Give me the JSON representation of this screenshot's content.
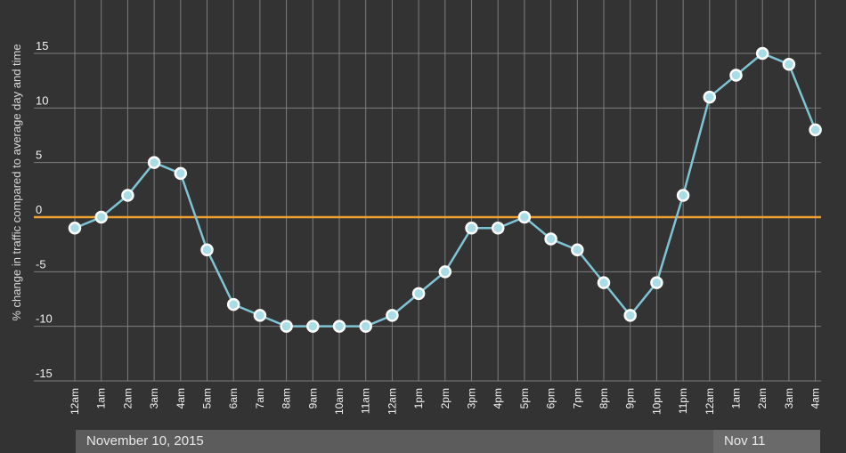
{
  "chart_data": {
    "type": "line",
    "title": "",
    "ylabel": "% change in traffic compared to average day and time",
    "xlabel": "",
    "ylim": [
      -15,
      15
    ],
    "yticks": [
      15,
      10,
      5,
      0,
      -5,
      -10,
      -15
    ],
    "categories": [
      "12am",
      "1am",
      "2am",
      "3am",
      "4am",
      "5am",
      "6am",
      "7am",
      "8am",
      "9am",
      "10am",
      "11am",
      "12am",
      "1pm",
      "2pm",
      "3pm",
      "4pm",
      "5pm",
      "6pm",
      "7pm",
      "8pm",
      "9pm",
      "10pm",
      "11pm",
      "12am",
      "1am",
      "2am",
      "3am",
      "4am"
    ],
    "series": [
      {
        "values": [
          -1,
          0,
          2,
          5,
          4,
          -3,
          -8,
          -9,
          -10,
          -10,
          -10,
          -10,
          -9,
          -7,
          -5,
          -1,
          -1,
          0,
          -2,
          -3,
          -6,
          -9,
          -6,
          2,
          11,
          13,
          15,
          14,
          8
        ]
      }
    ],
    "reference_line": 0,
    "grid": true,
    "colors": {
      "line": "#7ec4d4",
      "point": "#a8dde6",
      "zero_line": "#f0a030",
      "background": "#333333"
    }
  },
  "date_labels": {
    "day1": "November 10, 2015",
    "day2": "Nov 11"
  }
}
